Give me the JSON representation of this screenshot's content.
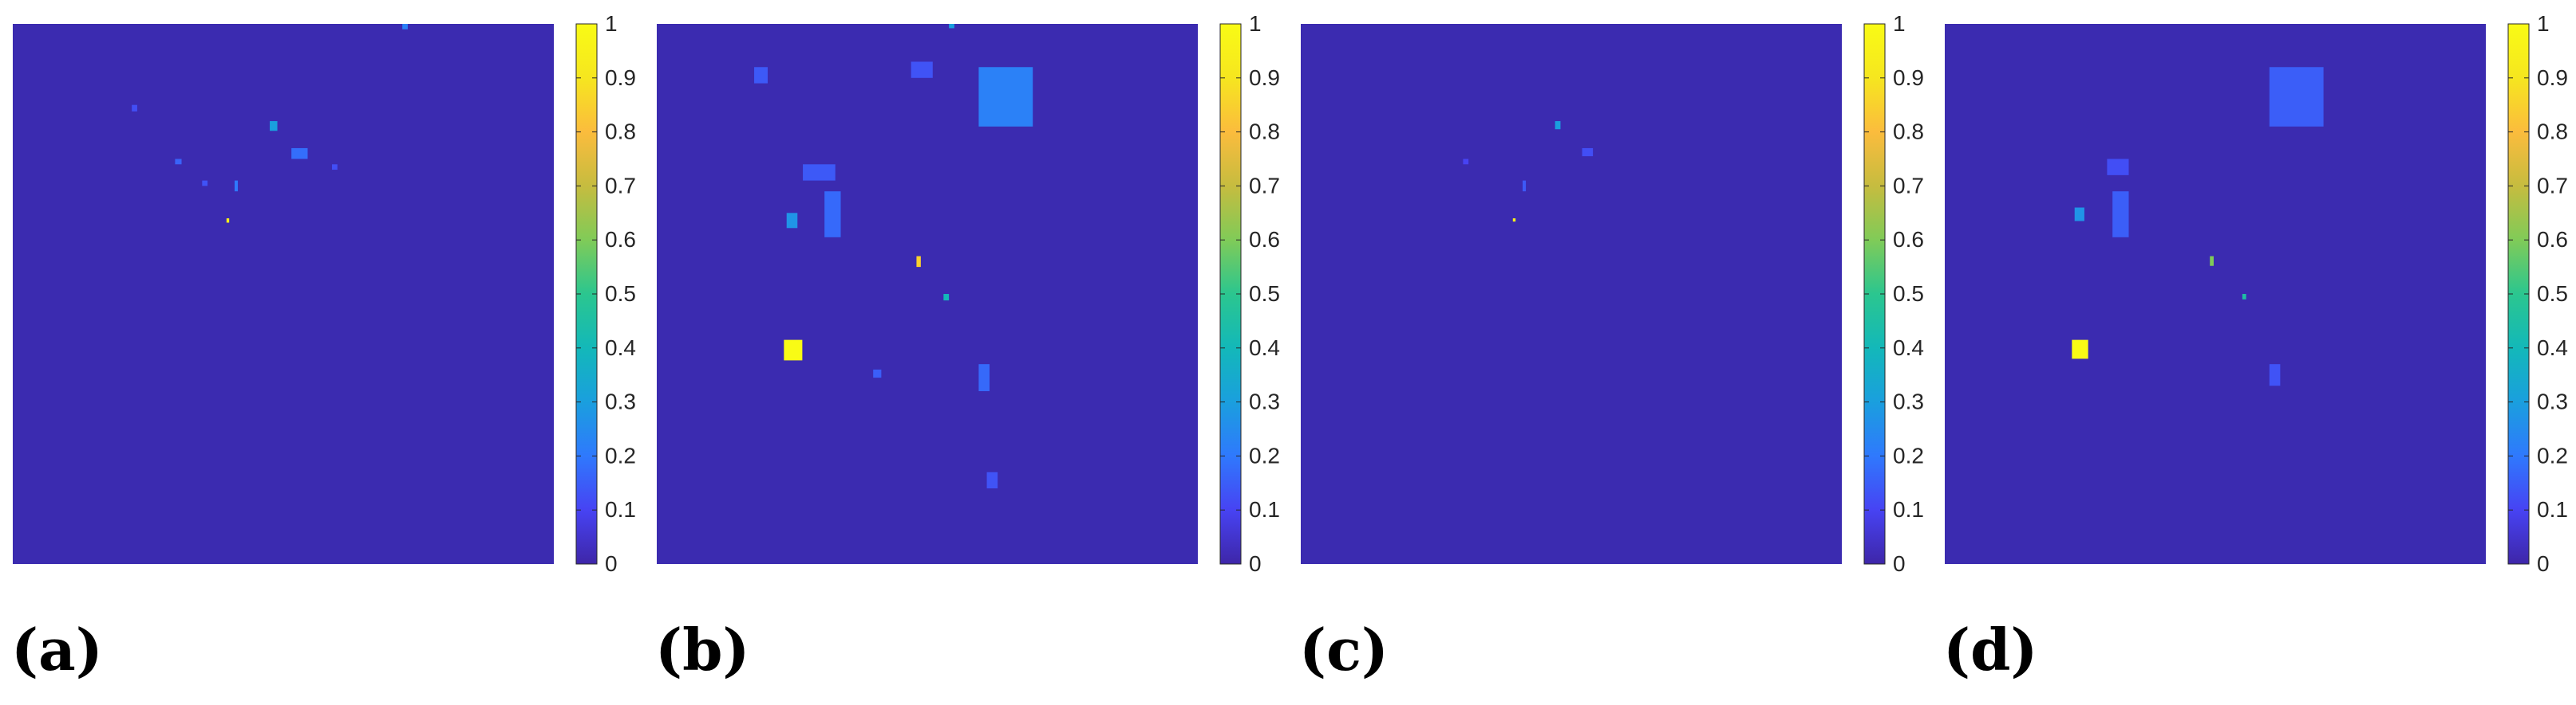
{
  "figure": {
    "colormap": [
      "#3e26a8",
      "#4743f3",
      "#2f79fd",
      "#1a9fde",
      "#13b8b9",
      "#2bc68f",
      "#80cb58",
      "#c6bc3f",
      "#fbbc3d",
      "#f6e61f",
      "#f9fb15"
    ],
    "background_color": "#3b2bb0"
  },
  "chart_data": [
    {
      "type": "heatmap",
      "panel_label": "(a)",
      "colorbar": {
        "range": [
          0,
          1
        ],
        "ticks": [
          "0",
          "0.1",
          "0.2",
          "0.3",
          "0.4",
          "0.5",
          "0.6",
          "0.7",
          "0.8",
          "0.9",
          "1"
        ]
      },
      "features": [
        {
          "x": 0.395,
          "y": 0.36,
          "w": 0.005,
          "h": 0.008,
          "value": 0.95
        },
        {
          "x": 0.475,
          "y": 0.18,
          "w": 0.014,
          "h": 0.018,
          "value": 0.3
        },
        {
          "x": 0.515,
          "y": 0.23,
          "w": 0.03,
          "h": 0.02,
          "value": 0.18
        },
        {
          "x": 0.3,
          "y": 0.25,
          "w": 0.012,
          "h": 0.01,
          "value": 0.16
        },
        {
          "x": 0.41,
          "y": 0.29,
          "w": 0.006,
          "h": 0.02,
          "value": 0.2
        },
        {
          "x": 0.22,
          "y": 0.15,
          "w": 0.01,
          "h": 0.012,
          "value": 0.12
        },
        {
          "x": 0.72,
          "y": 0.0,
          "w": 0.01,
          "h": 0.01,
          "value": 0.22
        },
        {
          "x": 0.59,
          "y": 0.26,
          "w": 0.01,
          "h": 0.01,
          "value": 0.12
        },
        {
          "x": 0.35,
          "y": 0.29,
          "w": 0.01,
          "h": 0.01,
          "value": 0.13
        }
      ]
    },
    {
      "type": "heatmap",
      "panel_label": "(b)",
      "colorbar": {
        "range": [
          0,
          1
        ],
        "ticks": [
          "0",
          "0.1",
          "0.2",
          "0.3",
          "0.4",
          "0.5",
          "0.6",
          "0.7",
          "0.8",
          "0.9",
          "1"
        ]
      },
      "features": [
        {
          "x": 0.235,
          "y": 0.585,
          "w": 0.034,
          "h": 0.038,
          "value": 1.0
        },
        {
          "x": 0.48,
          "y": 0.43,
          "w": 0.008,
          "h": 0.02,
          "value": 0.85
        },
        {
          "x": 0.24,
          "y": 0.35,
          "w": 0.02,
          "h": 0.028,
          "value": 0.27
        },
        {
          "x": 0.595,
          "y": 0.08,
          "w": 0.1,
          "h": 0.11,
          "value": 0.22
        },
        {
          "x": 0.31,
          "y": 0.31,
          "w": 0.03,
          "h": 0.085,
          "value": 0.17
        },
        {
          "x": 0.595,
          "y": 0.63,
          "w": 0.02,
          "h": 0.05,
          "value": 0.17
        },
        {
          "x": 0.18,
          "y": 0.08,
          "w": 0.025,
          "h": 0.03,
          "value": 0.14
        },
        {
          "x": 0.27,
          "y": 0.26,
          "w": 0.06,
          "h": 0.03,
          "value": 0.14
        },
        {
          "x": 0.47,
          "y": 0.07,
          "w": 0.04,
          "h": 0.03,
          "value": 0.13
        },
        {
          "x": 0.53,
          "y": 0.5,
          "w": 0.01,
          "h": 0.012,
          "value": 0.4
        },
        {
          "x": 0.4,
          "y": 0.64,
          "w": 0.015,
          "h": 0.015,
          "value": 0.15
        },
        {
          "x": 0.54,
          "y": 0.0,
          "w": 0.01,
          "h": 0.008,
          "value": 0.3
        },
        {
          "x": 0.61,
          "y": 0.83,
          "w": 0.02,
          "h": 0.03,
          "value": 0.13
        }
      ]
    },
    {
      "type": "heatmap",
      "panel_label": "(c)",
      "colorbar": {
        "range": [
          0,
          1
        ],
        "ticks": [
          "0",
          "0.1",
          "0.2",
          "0.3",
          "0.4",
          "0.5",
          "0.6",
          "0.7",
          "0.8",
          "0.9",
          "1"
        ]
      },
      "features": [
        {
          "x": 0.392,
          "y": 0.36,
          "w": 0.005,
          "h": 0.006,
          "value": 0.95
        },
        {
          "x": 0.47,
          "y": 0.18,
          "w": 0.01,
          "h": 0.015,
          "value": 0.3
        },
        {
          "x": 0.41,
          "y": 0.29,
          "w": 0.006,
          "h": 0.02,
          "value": 0.14
        },
        {
          "x": 0.52,
          "y": 0.23,
          "w": 0.02,
          "h": 0.015,
          "value": 0.12
        },
        {
          "x": 0.3,
          "y": 0.25,
          "w": 0.01,
          "h": 0.01,
          "value": 0.1
        }
      ]
    },
    {
      "type": "heatmap",
      "panel_label": "(d)",
      "colorbar": {
        "range": [
          0,
          1
        ],
        "ticks": [
          "0",
          "0.1",
          "0.2",
          "0.3",
          "0.4",
          "0.5",
          "0.6",
          "0.7",
          "0.8",
          "0.9",
          "1"
        ]
      },
      "features": [
        {
          "x": 0.235,
          "y": 0.585,
          "w": 0.03,
          "h": 0.035,
          "value": 1.0
        },
        {
          "x": 0.49,
          "y": 0.43,
          "w": 0.007,
          "h": 0.018,
          "value": 0.6
        },
        {
          "x": 0.24,
          "y": 0.34,
          "w": 0.018,
          "h": 0.025,
          "value": 0.27
        },
        {
          "x": 0.6,
          "y": 0.08,
          "w": 0.1,
          "h": 0.11,
          "value": 0.15
        },
        {
          "x": 0.31,
          "y": 0.31,
          "w": 0.03,
          "h": 0.085,
          "value": 0.15
        },
        {
          "x": 0.55,
          "y": 0.5,
          "w": 0.007,
          "h": 0.01,
          "value": 0.45
        },
        {
          "x": 0.6,
          "y": 0.63,
          "w": 0.02,
          "h": 0.04,
          "value": 0.13
        },
        {
          "x": 0.3,
          "y": 0.25,
          "w": 0.04,
          "h": 0.03,
          "value": 0.12
        }
      ]
    }
  ]
}
